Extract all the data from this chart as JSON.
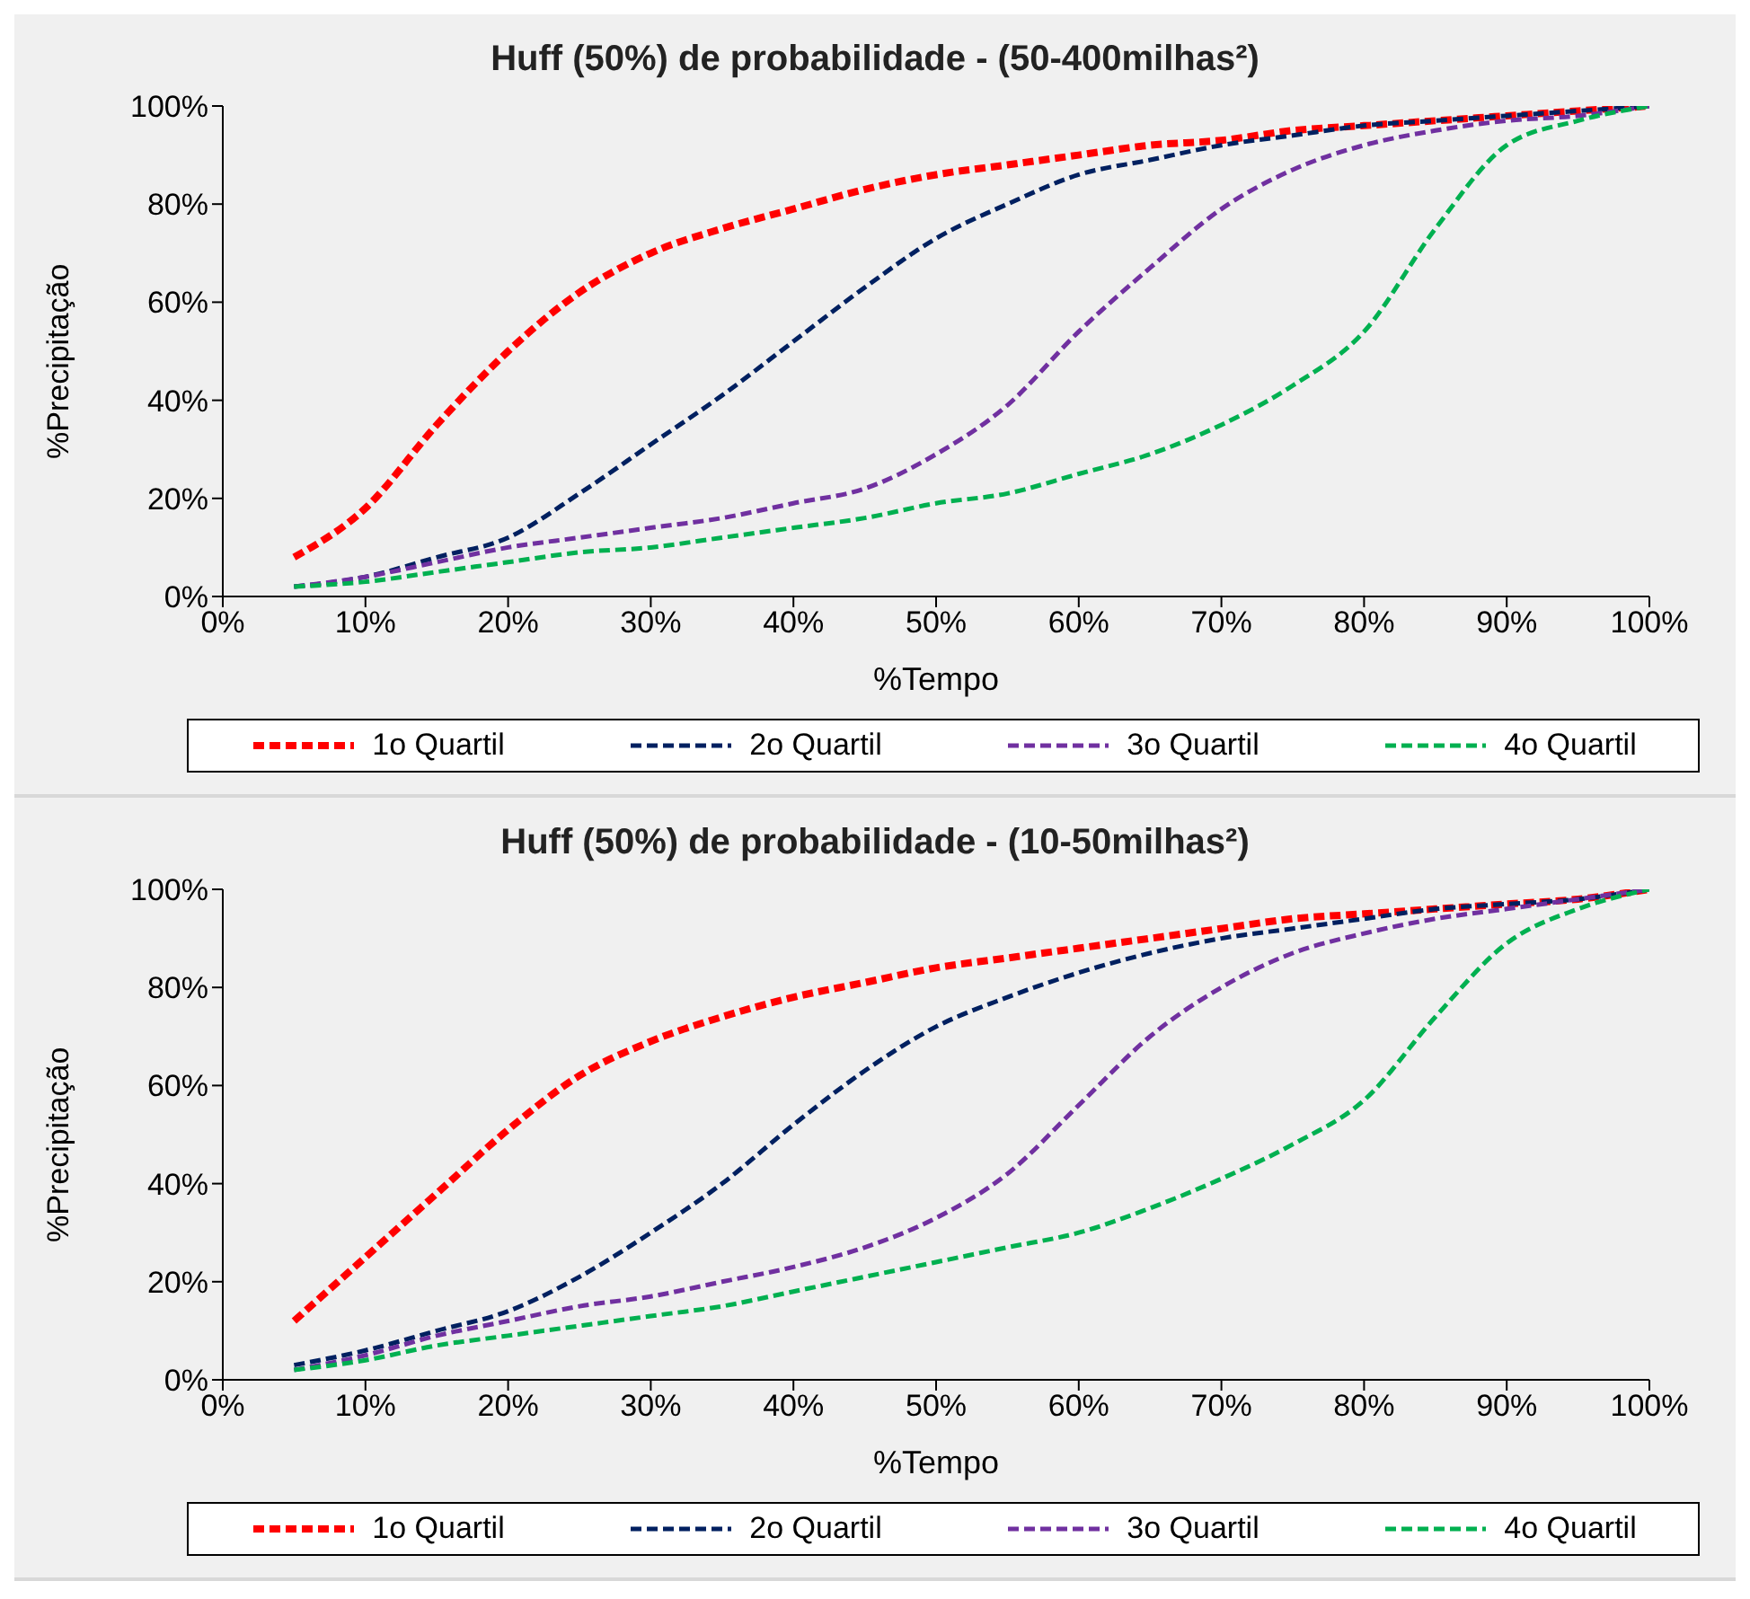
{
  "chart_data": [
    {
      "type": "line",
      "title": "Huff (50%) de probabilidade - (50-400milhas²)",
      "xlabel": "%Tempo",
      "ylabel": "%Precipitação",
      "x": [
        5,
        10,
        15,
        20,
        25,
        30,
        35,
        40,
        45,
        50,
        55,
        60,
        65,
        70,
        75,
        80,
        85,
        90,
        95,
        100
      ],
      "xlim": [
        0,
        100
      ],
      "xticks": [
        {
          "value": 0,
          "label": "0%"
        },
        {
          "value": 10,
          "label": "10%"
        },
        {
          "value": 20,
          "label": "20%"
        },
        {
          "value": 30,
          "label": "30%"
        },
        {
          "value": 40,
          "label": "40%"
        },
        {
          "value": 50,
          "label": "50%"
        },
        {
          "value": 60,
          "label": "60%"
        },
        {
          "value": 70,
          "label": "70%"
        },
        {
          "value": 80,
          "label": "80%"
        },
        {
          "value": 90,
          "label": "90%"
        },
        {
          "value": 100,
          "label": "100%"
        }
      ],
      "ylim": [
        0,
        100
      ],
      "yticks": [
        {
          "value": 0,
          "label": "0%"
        },
        {
          "value": 20,
          "label": "20%"
        },
        {
          "value": 40,
          "label": "40%"
        },
        {
          "value": 60,
          "label": "60%"
        },
        {
          "value": 80,
          "label": "80%"
        },
        {
          "value": 100,
          "label": "100%"
        }
      ],
      "grid": false,
      "legend": "bottom",
      "marker": "none",
      "series": [
        {
          "name": "1o Quartil",
          "color": "#ff0000",
          "line_style": "dashed",
          "values": [
            8,
            18,
            35,
            50,
            62,
            70,
            75,
            79,
            83,
            86,
            88,
            90,
            92,
            93,
            95,
            96,
            97,
            98,
            99,
            100
          ]
        },
        {
          "name": "2o Quartil",
          "color": "#002060",
          "line_style": "dashed",
          "values": [
            2,
            4,
            8,
            12,
            21,
            31,
            41,
            52,
            63,
            73,
            80,
            86,
            89,
            92,
            94,
            96,
            97,
            98,
            99,
            100
          ]
        },
        {
          "name": "3o Quartil",
          "color": "#7030a0",
          "line_style": "dashed",
          "values": [
            2,
            4,
            7,
            10,
            12,
            14,
            16,
            19,
            22,
            29,
            39,
            54,
            67,
            79,
            87,
            92,
            95,
            97,
            98,
            100
          ]
        },
        {
          "name": "4o Quartil",
          "color": "#00b050",
          "line_style": "dashed",
          "values": [
            2,
            3,
            5,
            7,
            9,
            10,
            12,
            14,
            16,
            19,
            21,
            25,
            29,
            35,
            43,
            54,
            75,
            92,
            97,
            100
          ]
        }
      ]
    },
    {
      "type": "line",
      "title": "Huff (50%) de probabilidade - (10-50milhas²)",
      "xlabel": "%Tempo",
      "ylabel": "%Precipitação",
      "x": [
        5,
        10,
        15,
        20,
        25,
        30,
        35,
        40,
        45,
        50,
        55,
        60,
        65,
        70,
        75,
        80,
        85,
        90,
        95,
        100
      ],
      "xlim": [
        0,
        100
      ],
      "xticks": [
        {
          "value": 0,
          "label": "0%"
        },
        {
          "value": 10,
          "label": "10%"
        },
        {
          "value": 20,
          "label": "20%"
        },
        {
          "value": 30,
          "label": "30%"
        },
        {
          "value": 40,
          "label": "40%"
        },
        {
          "value": 50,
          "label": "50%"
        },
        {
          "value": 60,
          "label": "60%"
        },
        {
          "value": 70,
          "label": "70%"
        },
        {
          "value": 80,
          "label": "80%"
        },
        {
          "value": 90,
          "label": "90%"
        },
        {
          "value": 100,
          "label": "100%"
        }
      ],
      "ylim": [
        0,
        100
      ],
      "yticks": [
        {
          "value": 0,
          "label": "0%"
        },
        {
          "value": 20,
          "label": "20%"
        },
        {
          "value": 40,
          "label": "40%"
        },
        {
          "value": 60,
          "label": "60%"
        },
        {
          "value": 80,
          "label": "80%"
        },
        {
          "value": 100,
          "label": "100%"
        }
      ],
      "grid": false,
      "legend": "bottom",
      "marker": "none",
      "series": [
        {
          "name": "1o Quartil",
          "color": "#ff0000",
          "line_style": "dashed",
          "values": [
            12,
            25,
            38,
            51,
            62,
            69,
            74,
            78,
            81,
            84,
            86,
            88,
            90,
            92,
            94,
            95,
            96,
            97,
            98,
            100
          ]
        },
        {
          "name": "2o Quartil",
          "color": "#002060",
          "line_style": "dashed",
          "values": [
            3,
            6,
            10,
            14,
            21,
            30,
            40,
            52,
            63,
            72,
            78,
            83,
            87,
            90,
            92,
            94,
            96,
            97,
            98,
            100
          ]
        },
        {
          "name": "3o Quartil",
          "color": "#7030a0",
          "line_style": "dashed",
          "values": [
            2,
            5,
            9,
            12,
            15,
            17,
            20,
            23,
            27,
            33,
            42,
            56,
            70,
            80,
            87,
            91,
            94,
            96,
            98,
            100
          ]
        },
        {
          "name": "4o Quartil",
          "color": "#00b050",
          "line_style": "dashed",
          "values": [
            2,
            4,
            7,
            9,
            11,
            13,
            15,
            18,
            21,
            24,
            27,
            30,
            35,
            41,
            48,
            57,
            74,
            89,
            96,
            100
          ]
        }
      ]
    }
  ]
}
